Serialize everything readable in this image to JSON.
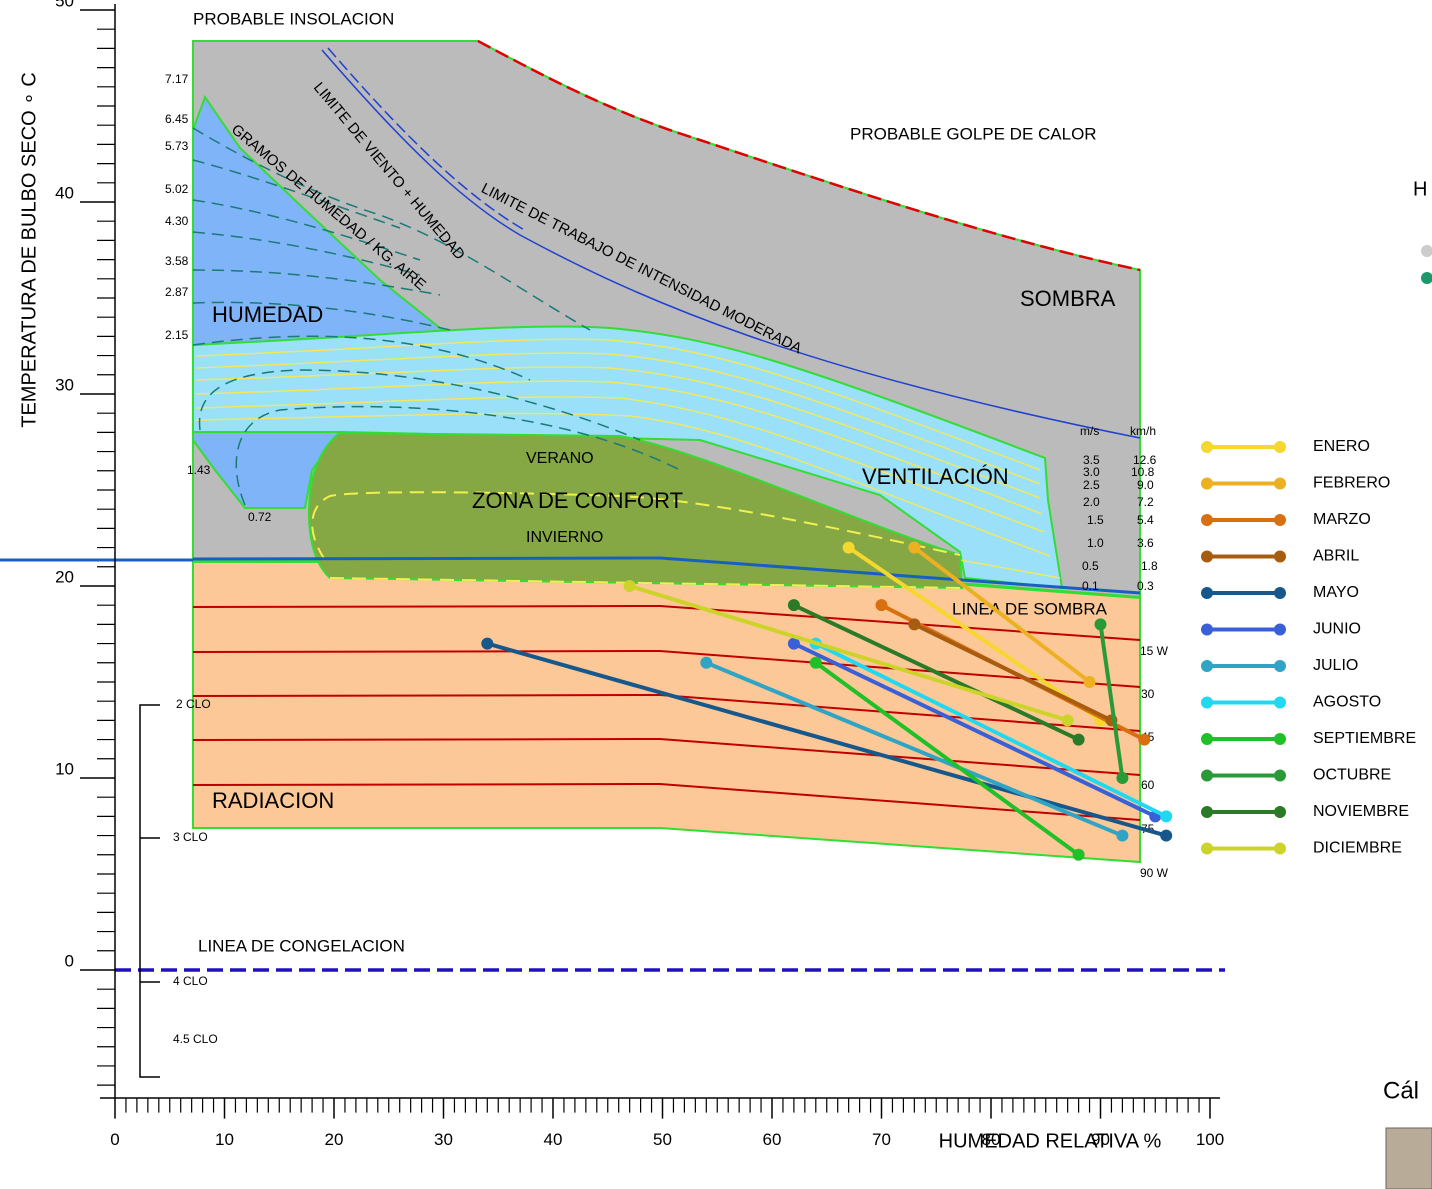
{
  "chart_data": {
    "type": "line",
    "xlabel": "HUMEDAD RELATIVA %",
    "ylabel": "TEMPERATURA DE BULBO SECO ∘ C",
    "xlim": [
      0,
      100
    ],
    "ylim": [
      -6.7,
      50
    ],
    "xticks": [
      0,
      10,
      20,
      30,
      40,
      50,
      60,
      70,
      80,
      90,
      100
    ],
    "yticks": [
      0,
      10,
      20,
      30,
      40,
      50
    ],
    "xminorticks": [
      1,
      2,
      3,
      4,
      5,
      6,
      7,
      8,
      9,
      11,
      12,
      13,
      14,
      15,
      16,
      17,
      18,
      19,
      21,
      22,
      23,
      24,
      25,
      26,
      27,
      28,
      29,
      31,
      32,
      33,
      34,
      35,
      36,
      37,
      38,
      39,
      41,
      42,
      43,
      44,
      45,
      46,
      47,
      48,
      49,
      51,
      52,
      53,
      54,
      55,
      56,
      57,
      58,
      59,
      61,
      62,
      63,
      64,
      65,
      66,
      67,
      68,
      69,
      71,
      72,
      73,
      74,
      75,
      76,
      77,
      78,
      79,
      81,
      82,
      83,
      84,
      85,
      86,
      87,
      88,
      89,
      91,
      92,
      93,
      94,
      95,
      96,
      97,
      98,
      99
    ],
    "yminorticks": [
      -6,
      -5,
      -4,
      -3,
      -2,
      -1,
      1,
      2,
      3,
      4,
      5,
      6,
      7,
      8,
      9,
      11,
      12,
      13,
      14,
      15,
      16,
      17,
      18,
      19,
      21,
      22,
      23,
      24,
      25,
      26,
      27,
      28,
      29,
      31,
      32,
      33,
      34,
      35,
      36,
      37,
      38,
      39,
      41,
      42,
      43,
      44,
      45,
      46,
      47,
      48,
      49
    ],
    "series": [
      {
        "name": "ENERO",
        "color": "#f5d72e",
        "x": [
          67,
          90
        ],
        "values": [
          22,
          13
        ]
      },
      {
        "name": "FEBRERO",
        "color": "#edb020",
        "x": [
          73,
          89
        ],
        "values": [
          22,
          15
        ]
      },
      {
        "name": "MARZO",
        "color": "#d97010",
        "x": [
          70,
          94
        ],
        "values": [
          19,
          12
        ]
      },
      {
        "name": "ABRIL",
        "color": "#a85c10",
        "x": [
          73,
          91
        ],
        "values": [
          18,
          13
        ]
      },
      {
        "name": "MAYO",
        "color": "#17588c",
        "x": [
          34,
          96
        ],
        "values": [
          17,
          7
        ]
      },
      {
        "name": "JUNIO",
        "color": "#3a60d8",
        "x": [
          62,
          95
        ],
        "values": [
          17,
          8
        ]
      },
      {
        "name": "JULIO",
        "color": "#30a4c4",
        "x": [
          54,
          92
        ],
        "values": [
          16,
          7
        ]
      },
      {
        "name": "AGOSTO",
        "color": "#20d8f0",
        "x": [
          64,
          96
        ],
        "values": [
          17,
          8
        ]
      },
      {
        "name": "SEPTIEMBRE",
        "color": "#20c028",
        "x": [
          64,
          88
        ],
        "values": [
          16,
          6
        ]
      },
      {
        "name": "OCTUBRE",
        "color": "#2a9a38",
        "x": [
          90,
          92
        ],
        "values": [
          18,
          10
        ]
      },
      {
        "name": "NOVIEMBRE",
        "color": "#2a7a28",
        "x": [
          62,
          88
        ],
        "values": [
          19,
          12
        ]
      },
      {
        "name": "DICIEMBRE",
        "color": "#ccd42a",
        "x": [
          47,
          87
        ],
        "values": [
          20,
          13
        ]
      }
    ],
    "annotations": [
      "PROBABLE INSOLACION",
      "PROBABLE GOLPE DE CALOR",
      "SOMBRA",
      "HUMEDAD",
      "VENTILACIÓN",
      "VERANO",
      "ZONA DE CONFORT",
      "INVIERNO",
      "RADIACION",
      "LINEA DE SOMBRA",
      "LINEA DE CONGELACION",
      "GRAMOS DE HUMEDAD / KG. AIRE",
      "LIMITE DE VIENTO + HUMEDAD",
      "LIMITE DE TRABAJO DE INTENSIDAD MODERADA",
      "7.17",
      "6.45",
      "5.73",
      "5.02",
      "4.30",
      "3.58",
      "2.87",
      "2.15",
      "1.43",
      "0.72",
      "m/s",
      "km/h",
      "3.5",
      "3.0",
      "2.5",
      "2.0",
      "1.5",
      "1.0",
      "0.5",
      "0.1",
      "12.6",
      "10.8",
      "9.0",
      "7.2",
      "5.4",
      "3.6",
      "1.8",
      "0.3",
      "15 W",
      "30",
      "45",
      "60",
      "75",
      "90 W",
      "2 CLO",
      "3 CLO",
      "4 CLO",
      "4.5 CLO",
      "H",
      "Cál"
    ]
  }
}
